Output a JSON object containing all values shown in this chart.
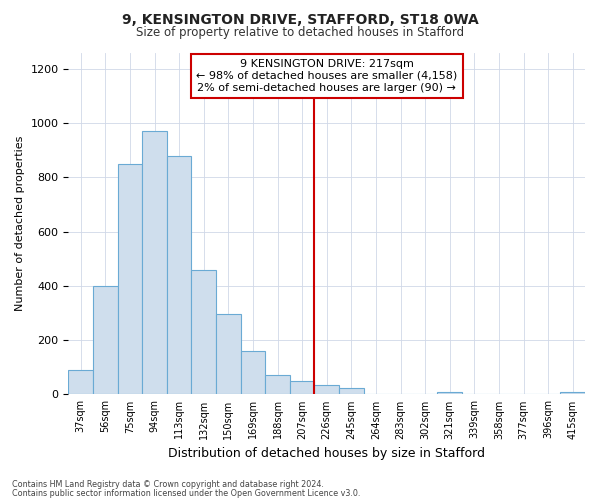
{
  "title1": "9, KENSINGTON DRIVE, STAFFORD, ST18 0WA",
  "title2": "Size of property relative to detached houses in Stafford",
  "xlabel": "Distribution of detached houses by size in Stafford",
  "ylabel": "Number of detached properties",
  "bar_color": "#cfdeed",
  "bar_edge_color": "#6aaad4",
  "vline_color": "#cc0000",
  "annotation_text": "9 KENSINGTON DRIVE: 217sqm\n← 98% of detached houses are smaller (4,158)\n2% of semi-detached houses are larger (90) →",
  "footer1": "Contains HM Land Registry data © Crown copyright and database right 2024.",
  "footer2": "Contains public sector information licensed under the Open Government Licence v3.0.",
  "categories": [
    "37sqm",
    "56sqm",
    "75sqm",
    "94sqm",
    "113sqm",
    "132sqm",
    "150sqm",
    "169sqm",
    "188sqm",
    "207sqm",
    "226sqm",
    "245sqm",
    "264sqm",
    "283sqm",
    "302sqm",
    "321sqm",
    "339sqm",
    "358sqm",
    "377sqm",
    "396sqm",
    "415sqm"
  ],
  "values": [
    90,
    400,
    850,
    970,
    880,
    460,
    295,
    160,
    70,
    50,
    35,
    25,
    0,
    0,
    0,
    10,
    0,
    0,
    0,
    0,
    10
  ],
  "ylim": [
    0,
    1260
  ],
  "yticks": [
    0,
    200,
    400,
    600,
    800,
    1000,
    1200
  ],
  "background_color": "#ffffff",
  "plot_bg_color": "#ffffff",
  "grid_color": "#d0d8e8"
}
